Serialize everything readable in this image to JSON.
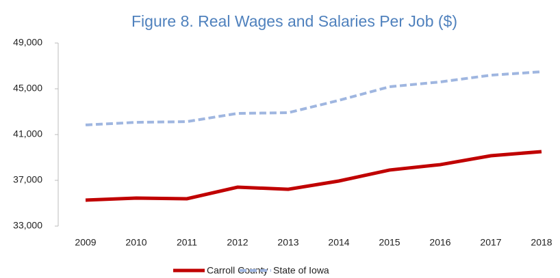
{
  "chart_data": {
    "type": "line",
    "title": "Figure 8.  Real Wages and Salaries Per Job ($)",
    "categories": [
      "2009",
      "2010",
      "2011",
      "2012",
      "2013",
      "2014",
      "2015",
      "2016",
      "2017",
      "2018"
    ],
    "series": [
      {
        "name": "Carroll County",
        "color": "#c00000",
        "dash": false,
        "values": [
          35270,
          35450,
          35390,
          36400,
          36220,
          36940,
          37900,
          38370,
          39150,
          39510
        ]
      },
      {
        "name": "State of Iowa",
        "color": "#9fb6e0",
        "dash": true,
        "values": [
          41840,
          42070,
          42130,
          42850,
          42910,
          43990,
          45180,
          45600,
          46190,
          46490
        ]
      }
    ],
    "ylim": [
      33000,
      49000
    ],
    "yticks": [
      {
        "value": 33000,
        "label": "33,000"
      },
      {
        "value": 37000,
        "label": "37,000"
      },
      {
        "value": 41000,
        "label": "41,000"
      },
      {
        "value": 45000,
        "label": "45,000"
      },
      {
        "value": 49000,
        "label": "49,000"
      }
    ],
    "grid": false,
    "legend": "bottom"
  }
}
